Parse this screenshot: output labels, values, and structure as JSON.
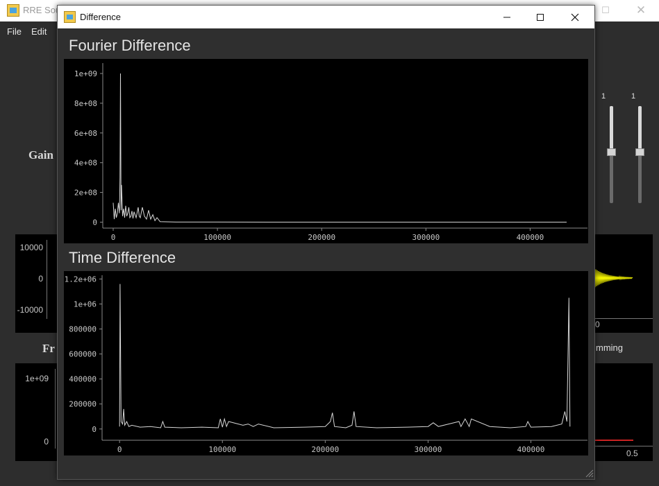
{
  "main_window": {
    "title": "RRE Sou",
    "menu": [
      "File",
      "Edit"
    ],
    "maximize_glyph": "☐",
    "close_glyph": "✕",
    "labels": {
      "gain": "Gain",
      "freq": "Fr",
      "windowing": "mming"
    },
    "left_time_ticks": [
      "10000",
      "0",
      "-10000"
    ],
    "left_freq_ticks": [
      "1e+09",
      "0"
    ],
    "right_time_tick": "0",
    "right_freq_tick": "0.5",
    "slider_values": [
      "1",
      "1"
    ],
    "signal_color": "#ffff00",
    "marker_color": "#cc2222"
  },
  "dialog": {
    "title": "Difference",
    "icon": "app-icon",
    "controls": [
      "minimize-icon",
      "maximize-icon",
      "close-icon"
    ]
  },
  "fourier": {
    "section_title": "Fourier Difference",
    "chart_data": {
      "type": "line",
      "x_ticks": [
        0,
        100000,
        200000,
        300000,
        400000
      ],
      "x_tick_labels": [
        "0",
        "100000",
        "200000",
        "300000",
        "400000"
      ],
      "y_ticks": [
        0,
        200000000,
        400000000,
        600000000,
        800000000,
        1000000000
      ],
      "y_tick_labels": [
        "0",
        "2e+08",
        "4e+08",
        "6e+08",
        "8e+08",
        "1e+09"
      ],
      "xlim": [
        -10000,
        455000
      ],
      "ylim": [
        -40000000,
        1070000000
      ],
      "line_color": "#d8d8d8",
      "grid": false,
      "series": [
        {
          "x": [
            0,
            1000,
            2000,
            3000,
            4000,
            5000,
            6000,
            6500,
            7000,
            7500,
            8000,
            9000,
            10000,
            11000,
            12000,
            13000,
            14000,
            15000,
            16000,
            17000,
            18000,
            19000,
            20000,
            22000,
            24000,
            25000,
            26000,
            28000,
            30000,
            32000,
            34000,
            36000,
            38000,
            40000,
            42000,
            45000,
            60000,
            100000,
            200000,
            300000,
            400000,
            435000
          ],
          "y": [
            130000000,
            20000000,
            90000000,
            30000000,
            60000000,
            130000000,
            60000000,
            300000000,
            1000000000,
            80000000,
            250000000,
            40000000,
            90000000,
            30000000,
            110000000,
            40000000,
            60000000,
            100000000,
            30000000,
            40000000,
            75000000,
            25000000,
            70000000,
            30000000,
            100000000,
            40000000,
            30000000,
            100000000,
            40000000,
            20000000,
            80000000,
            20000000,
            50000000,
            10000000,
            30000000,
            3000000,
            1000000,
            500000,
            300000,
            200000,
            100000,
            0
          ]
        }
      ]
    }
  },
  "time": {
    "section_title": "Time Difference",
    "chart_data": {
      "type": "line",
      "x_ticks": [
        0,
        100000,
        200000,
        300000,
        400000
      ],
      "x_tick_labels": [
        "0",
        "100000",
        "200000",
        "300000",
        "400000"
      ],
      "y_ticks": [
        0,
        200000,
        400000,
        600000,
        800000,
        1000000,
        1200000
      ],
      "y_tick_labels": [
        "0",
        "200000",
        "400000",
        "600000",
        "800000",
        "1e+06",
        "1.2e+06"
      ],
      "xlim": [
        -17000,
        455000
      ],
      "ylim": [
        -90000,
        1230000
      ],
      "line_color": "#d8d8d8",
      "grid": false,
      "series": [
        {
          "x": [
            0,
            500,
            1500,
            3000,
            4000,
            5000,
            7000,
            9000,
            12000,
            20000,
            30000,
            40000,
            42000,
            44000,
            60000,
            80000,
            96000,
            98000,
            100000,
            102000,
            104000,
            106000,
            120000,
            125000,
            130000,
            135000,
            150000,
            180000,
            200000,
            205000,
            207000,
            209000,
            220000,
            226000,
            228000,
            230000,
            250000,
            280000,
            300000,
            305000,
            310000,
            320000,
            330000,
            332000,
            336000,
            340000,
            342000,
            360000,
            380000,
            395000,
            397000,
            400000,
            420000,
            430000,
            433000,
            435000,
            437000,
            438000
          ],
          "y": [
            20000,
            1160000,
            60000,
            40000,
            160000,
            30000,
            60000,
            20000,
            30000,
            15000,
            20000,
            10000,
            60000,
            15000,
            10000,
            15000,
            10000,
            80000,
            15000,
            80000,
            20000,
            60000,
            30000,
            40000,
            20000,
            40000,
            10000,
            15000,
            20000,
            60000,
            130000,
            20000,
            10000,
            30000,
            140000,
            20000,
            10000,
            15000,
            20000,
            50000,
            20000,
            40000,
            60000,
            20000,
            80000,
            20000,
            80000,
            20000,
            10000,
            20000,
            60000,
            15000,
            20000,
            40000,
            140000,
            60000,
            1050000,
            20000
          ]
        }
      ]
    }
  }
}
